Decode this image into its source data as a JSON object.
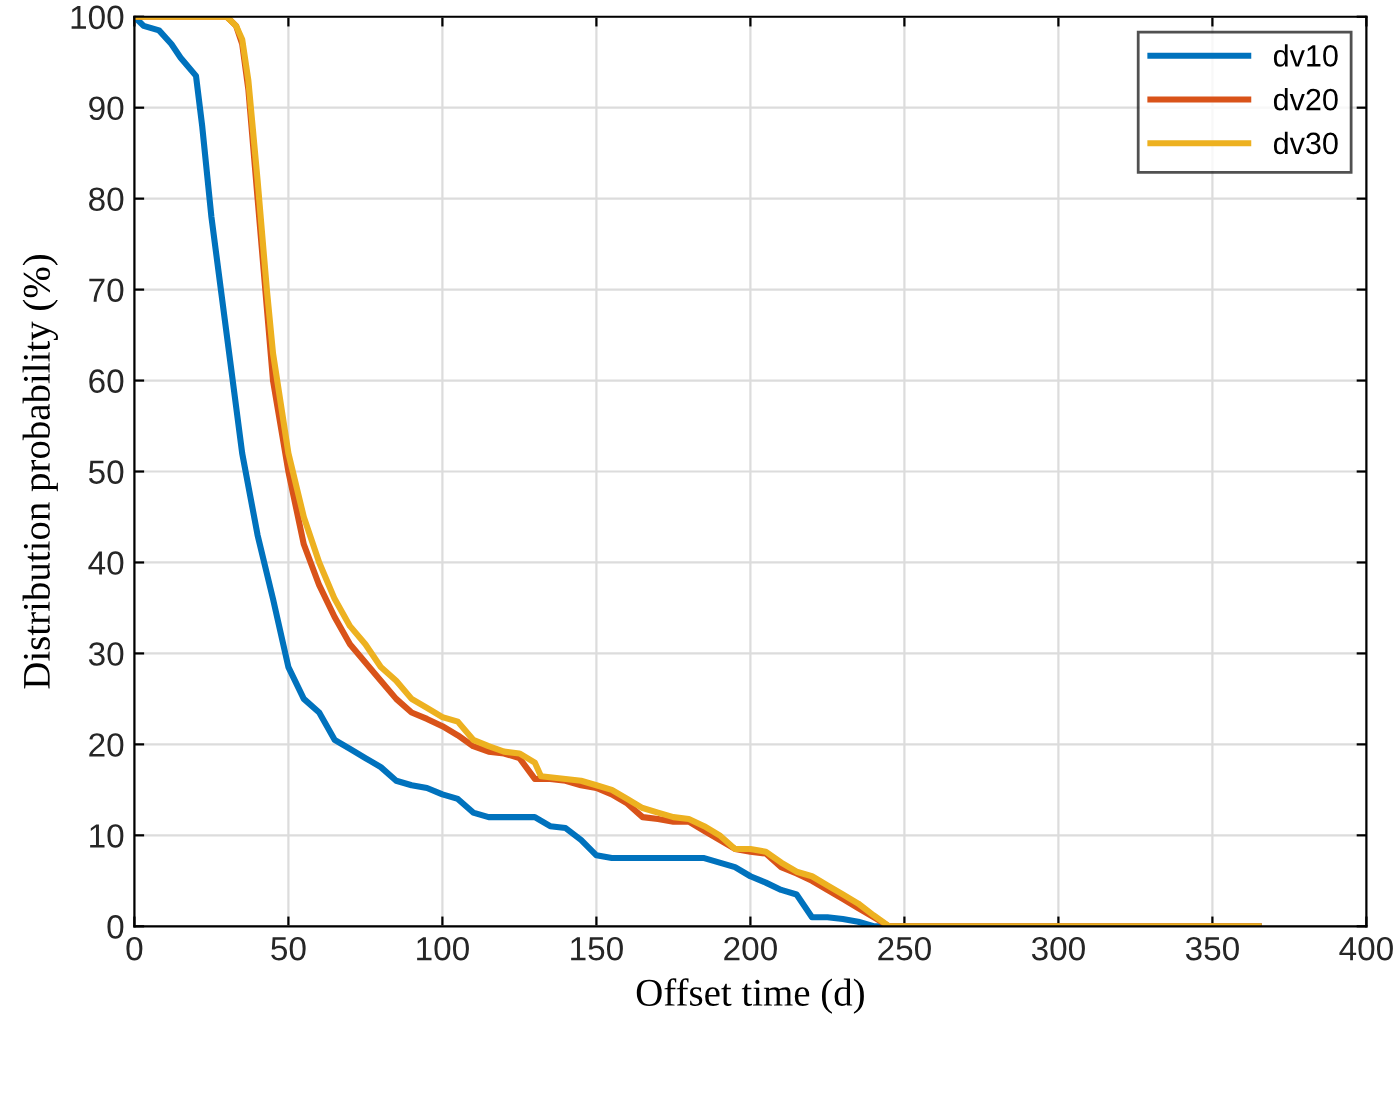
{
  "chart_data": {
    "type": "line",
    "xlabel": "Offset time (d)",
    "ylabel": "Distribution probability (%)",
    "xlim": [
      0,
      400
    ],
    "xticks": [
      0,
      50,
      100,
      150,
      200,
      250,
      300,
      350,
      400
    ],
    "ylim": [
      0,
      100
    ],
    "yticks": [
      0,
      10,
      20,
      30,
      40,
      50,
      60,
      70,
      80,
      90,
      100
    ],
    "grid": true,
    "legend": "top right",
    "marker": "none",
    "line_style": "solid",
    "series": [
      {
        "name": "dv10",
        "color": "#0072bd",
        "x": [
          0,
          3,
          8,
          12,
          15,
          20,
          22,
          25,
          30,
          35,
          40,
          45,
          50,
          55,
          60,
          65,
          70,
          75,
          80,
          85,
          90,
          95,
          100,
          105,
          110,
          115,
          120,
          125,
          130,
          135,
          140,
          145,
          150,
          155,
          160,
          180,
          185,
          190,
          195,
          200,
          205,
          210,
          215,
          220,
          225,
          230,
          235,
          240,
          245,
          365
        ],
        "values": [
          100,
          99,
          98.5,
          97,
          95.5,
          93.5,
          88,
          78,
          65,
          52,
          43,
          36,
          28.5,
          25,
          23.5,
          20.5,
          19.5,
          18.5,
          17.5,
          16,
          15.5,
          15.2,
          14.5,
          14,
          12.5,
          12,
          12,
          12,
          12,
          11,
          10.8,
          9.5,
          7.8,
          7.5,
          7.5,
          7.5,
          7.5,
          7,
          6.5,
          5.5,
          4.8,
          4,
          3.5,
          1,
          1,
          0.8,
          0.5,
          0,
          0,
          0
        ]
      },
      {
        "name": "dv20",
        "color": "#d95319",
        "x": [
          0,
          30,
          33,
          35,
          37,
          40,
          43,
          45,
          50,
          55,
          60,
          65,
          70,
          75,
          80,
          85,
          90,
          95,
          100,
          105,
          110,
          115,
          120,
          125,
          130,
          135,
          140,
          145,
          150,
          155,
          160,
          165,
          170,
          175,
          180,
          185,
          190,
          195,
          200,
          205,
          210,
          215,
          220,
          225,
          230,
          235,
          240,
          245,
          365
        ],
        "values": [
          100,
          100,
          99,
          97,
          92,
          80,
          68,
          60,
          50,
          42,
          37.5,
          34,
          31,
          29,
          27,
          25,
          23.5,
          22.8,
          22,
          21,
          19.8,
          19.2,
          19,
          18.5,
          16.2,
          16.2,
          16,
          15.5,
          15.2,
          14.5,
          13.5,
          12,
          11.8,
          11.5,
          11.5,
          10.5,
          9.5,
          8.5,
          8.2,
          8,
          6.5,
          5.8,
          5,
          4,
          3,
          2,
          1,
          0,
          0
        ]
      },
      {
        "name": "dv30",
        "color": "#edb120",
        "x": [
          0,
          30,
          33,
          35,
          37,
          40,
          43,
          45,
          50,
          55,
          60,
          65,
          70,
          75,
          80,
          85,
          90,
          95,
          100,
          105,
          110,
          115,
          120,
          125,
          130,
          132,
          140,
          145,
          150,
          155,
          160,
          165,
          170,
          175,
          180,
          185,
          190,
          195,
          200,
          205,
          210,
          215,
          220,
          225,
          230,
          235,
          240,
          245,
          365
        ],
        "values": [
          100,
          100,
          99,
          97.5,
          93,
          82,
          70,
          63,
          52,
          45,
          40,
          36,
          33,
          31,
          28.5,
          27,
          25,
          24,
          23,
          22.5,
          20.5,
          19.8,
          19.2,
          19,
          18,
          16.5,
          16.2,
          16,
          15.5,
          15,
          14,
          13,
          12.5,
          12,
          11.8,
          11,
          10,
          8.5,
          8.5,
          8.2,
          7,
          6,
          5.5,
          4.5,
          3.5,
          2.5,
          1.2,
          0,
          0
        ]
      }
    ]
  }
}
